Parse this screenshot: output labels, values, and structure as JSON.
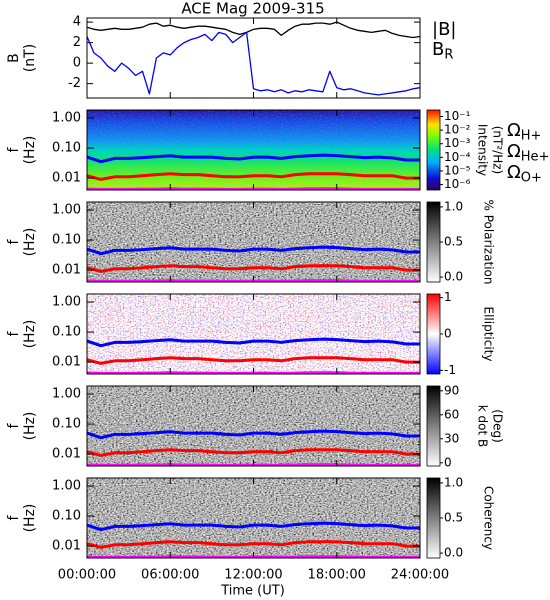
{
  "chart_data": [
    {
      "type": "line",
      "title": "ACE Mag 2009-315",
      "ylabel": [
        "B",
        "(nT)"
      ],
      "xlim": [
        0,
        24
      ],
      "ylim": [
        -3.4,
        4.4
      ],
      "yticks": [
        -2,
        0,
        2,
        4
      ],
      "x": [
        0,
        0.5,
        1,
        1.5,
        2,
        2.5,
        3,
        3.5,
        4,
        4.5,
        5,
        5.5,
        6,
        6.5,
        7,
        7.5,
        8,
        8.5,
        9,
        9.5,
        10,
        10.5,
        11,
        11.5,
        12,
        12.5,
        13,
        13.5,
        14,
        14.5,
        15,
        15.5,
        16,
        16.5,
        17,
        17.5,
        18,
        18.5,
        19,
        19.5,
        20,
        20.5,
        21,
        21.5,
        22,
        22.5,
        23,
        23.5,
        24
      ],
      "series": [
        {
          "name": "|B|",
          "color": "#000000",
          "values": [
            3.5,
            3.3,
            3.2,
            3.3,
            3.4,
            3.3,
            3.3,
            3.4,
            3.5,
            3.8,
            3.9,
            3.6,
            3.7,
            3.5,
            3.4,
            3.5,
            3.6,
            3.6,
            3.5,
            3.4,
            3.3,
            3.0,
            2.8,
            3.0,
            3.3,
            3.4,
            3.4,
            3.3,
            2.7,
            3.2,
            3.6,
            3.8,
            3.8,
            3.9,
            3.9,
            3.8,
            4.0,
            3.7,
            3.4,
            3.2,
            3.1,
            3.0,
            3.1,
            3.2,
            2.9,
            2.7,
            2.6,
            2.5,
            2.6
          ]
        },
        {
          "name": "B",
          "subscript": "R",
          "color": "#0000ff",
          "values": [
            2.6,
            1.0,
            0.5,
            -0.3,
            -0.8,
            0.0,
            -0.5,
            -1.2,
            -0.8,
            -3.0,
            0.5,
            1.0,
            0.8,
            1.5,
            2.0,
            2.3,
            2.5,
            2.8,
            2.2,
            3.0,
            2.8,
            2.0,
            2.5,
            3.0,
            -2.5,
            -2.7,
            -2.6,
            -2.8,
            -2.6,
            -2.9,
            -2.7,
            -2.8,
            -2.6,
            -2.7,
            -2.8,
            -0.8,
            -2.4,
            -2.6,
            -2.5,
            -2.7,
            -2.9,
            -3.0,
            -3.1,
            -3.0,
            -2.9,
            -2.8,
            -2.7,
            -2.5,
            -2.4
          ]
        }
      ]
    },
    {
      "type": "spectrogram",
      "ylabel": [
        "f",
        "(Hz)"
      ],
      "ylog": true,
      "ylim": [
        0.004,
        1.85
      ],
      "yticks": [
        {
          "value": 0.01,
          "label": "0.01"
        },
        {
          "value": 0.1,
          "label": "0.10"
        },
        {
          "value": 1,
          "label": "1.00"
        }
      ],
      "xlim": [
        0,
        24
      ],
      "xlabel": "Time (UT)",
      "xticks": [
        {
          "value": 0,
          "label": "00:00:00"
        },
        {
          "value": 6,
          "label": "06:00:00"
        },
        {
          "value": 12,
          "label": "12:00:00"
        },
        {
          "value": 18,
          "label": "18:00:00"
        },
        {
          "value": 24,
          "label": "24:00:00"
        }
      ],
      "x": [
        0,
        1,
        2,
        3,
        4,
        5,
        6,
        7,
        8,
        9,
        10,
        11,
        12,
        13,
        14,
        15,
        16,
        17,
        18,
        19,
        20,
        21,
        22,
        23,
        24
      ],
      "series": [
        {
          "name": "Ω",
          "subscript": "H+",
          "color": "#0000ff",
          "values": [
            0.05,
            0.035,
            0.045,
            0.045,
            0.048,
            0.052,
            0.055,
            0.05,
            0.05,
            0.05,
            0.045,
            0.043,
            0.05,
            0.05,
            0.045,
            0.052,
            0.055,
            0.058,
            0.056,
            0.052,
            0.048,
            0.05,
            0.047,
            0.04,
            0.04
          ]
        },
        {
          "name": "Ω",
          "subscript": "He+",
          "color": "#ff0000",
          "values": [
            0.012,
            0.009,
            0.011,
            0.011,
            0.012,
            0.013,
            0.014,
            0.013,
            0.013,
            0.012,
            0.011,
            0.011,
            0.012,
            0.012,
            0.011,
            0.013,
            0.014,
            0.014,
            0.014,
            0.013,
            0.012,
            0.012,
            0.012,
            0.01,
            0.01
          ]
        },
        {
          "name": "Ω",
          "subscript": "O+",
          "color": "#ff00ff",
          "values": [
            0.0043,
            0.0042,
            0.0042,
            0.0042,
            0.0043,
            0.0043,
            0.0044,
            0.0043,
            0.0043,
            0.0043,
            0.0042,
            0.0042,
            0.0043,
            0.0043,
            0.0042,
            0.0043,
            0.0044,
            0.0044,
            0.0044,
            0.0043,
            0.0042,
            0.0042,
            0.0042,
            0.0042,
            0.0042
          ]
        }
      ],
      "panels": [
        {
          "colormap": "rainbow",
          "colorbar": {
            "label": [
              "Intensity",
              "(nT²/Hz)"
            ],
            "log": true,
            "clim": [
              4e-07,
              0.3
            ],
            "ticks": [
              {
                "value": 0.1,
                "label": "10⁻¹"
              },
              {
                "value": 0.01,
                "label": "10⁻²"
              },
              {
                "value": 0.001,
                "label": "10⁻³"
              },
              {
                "value": 0.0001,
                "label": "10⁻⁴"
              },
              {
                "value": 1e-05,
                "label": "10⁻⁵"
              },
              {
                "value": 1e-06,
                "label": "10⁻⁶"
              }
            ]
          }
        },
        {
          "colormap": "gray",
          "colorbar": {
            "label": [
              "% Polarization"
            ],
            "clim": [
              -0.07,
              1.07
            ],
            "ticks": [
              {
                "value": 0,
                "label": "0.0"
              },
              0.5,
              {
                "value": 1,
                "label": "1.0"
              }
            ]
          }
        },
        {
          "colormap": "bwr",
          "colorbar": {
            "label": [
              "Ellipticity"
            ],
            "clim": [
              -1.1,
              1.1
            ],
            "ticks": [
              -1,
              0,
              1
            ]
          }
        },
        {
          "colormap": "gray",
          "colorbar": {
            "label": [
              "k dot B",
              "(Deg)"
            ],
            "clim": [
              -4,
              96
            ],
            "ticks": [
              0,
              30,
              60,
              90
            ]
          }
        },
        {
          "colormap": "gray",
          "colorbar": {
            "label": [
              "Coherency"
            ],
            "clim": [
              -0.07,
              1.07
            ],
            "ticks": [
              {
                "value": 0,
                "label": "0.0"
              },
              0.5,
              {
                "value": 1,
                "label": "1.0"
              }
            ]
          }
        }
      ]
    }
  ]
}
